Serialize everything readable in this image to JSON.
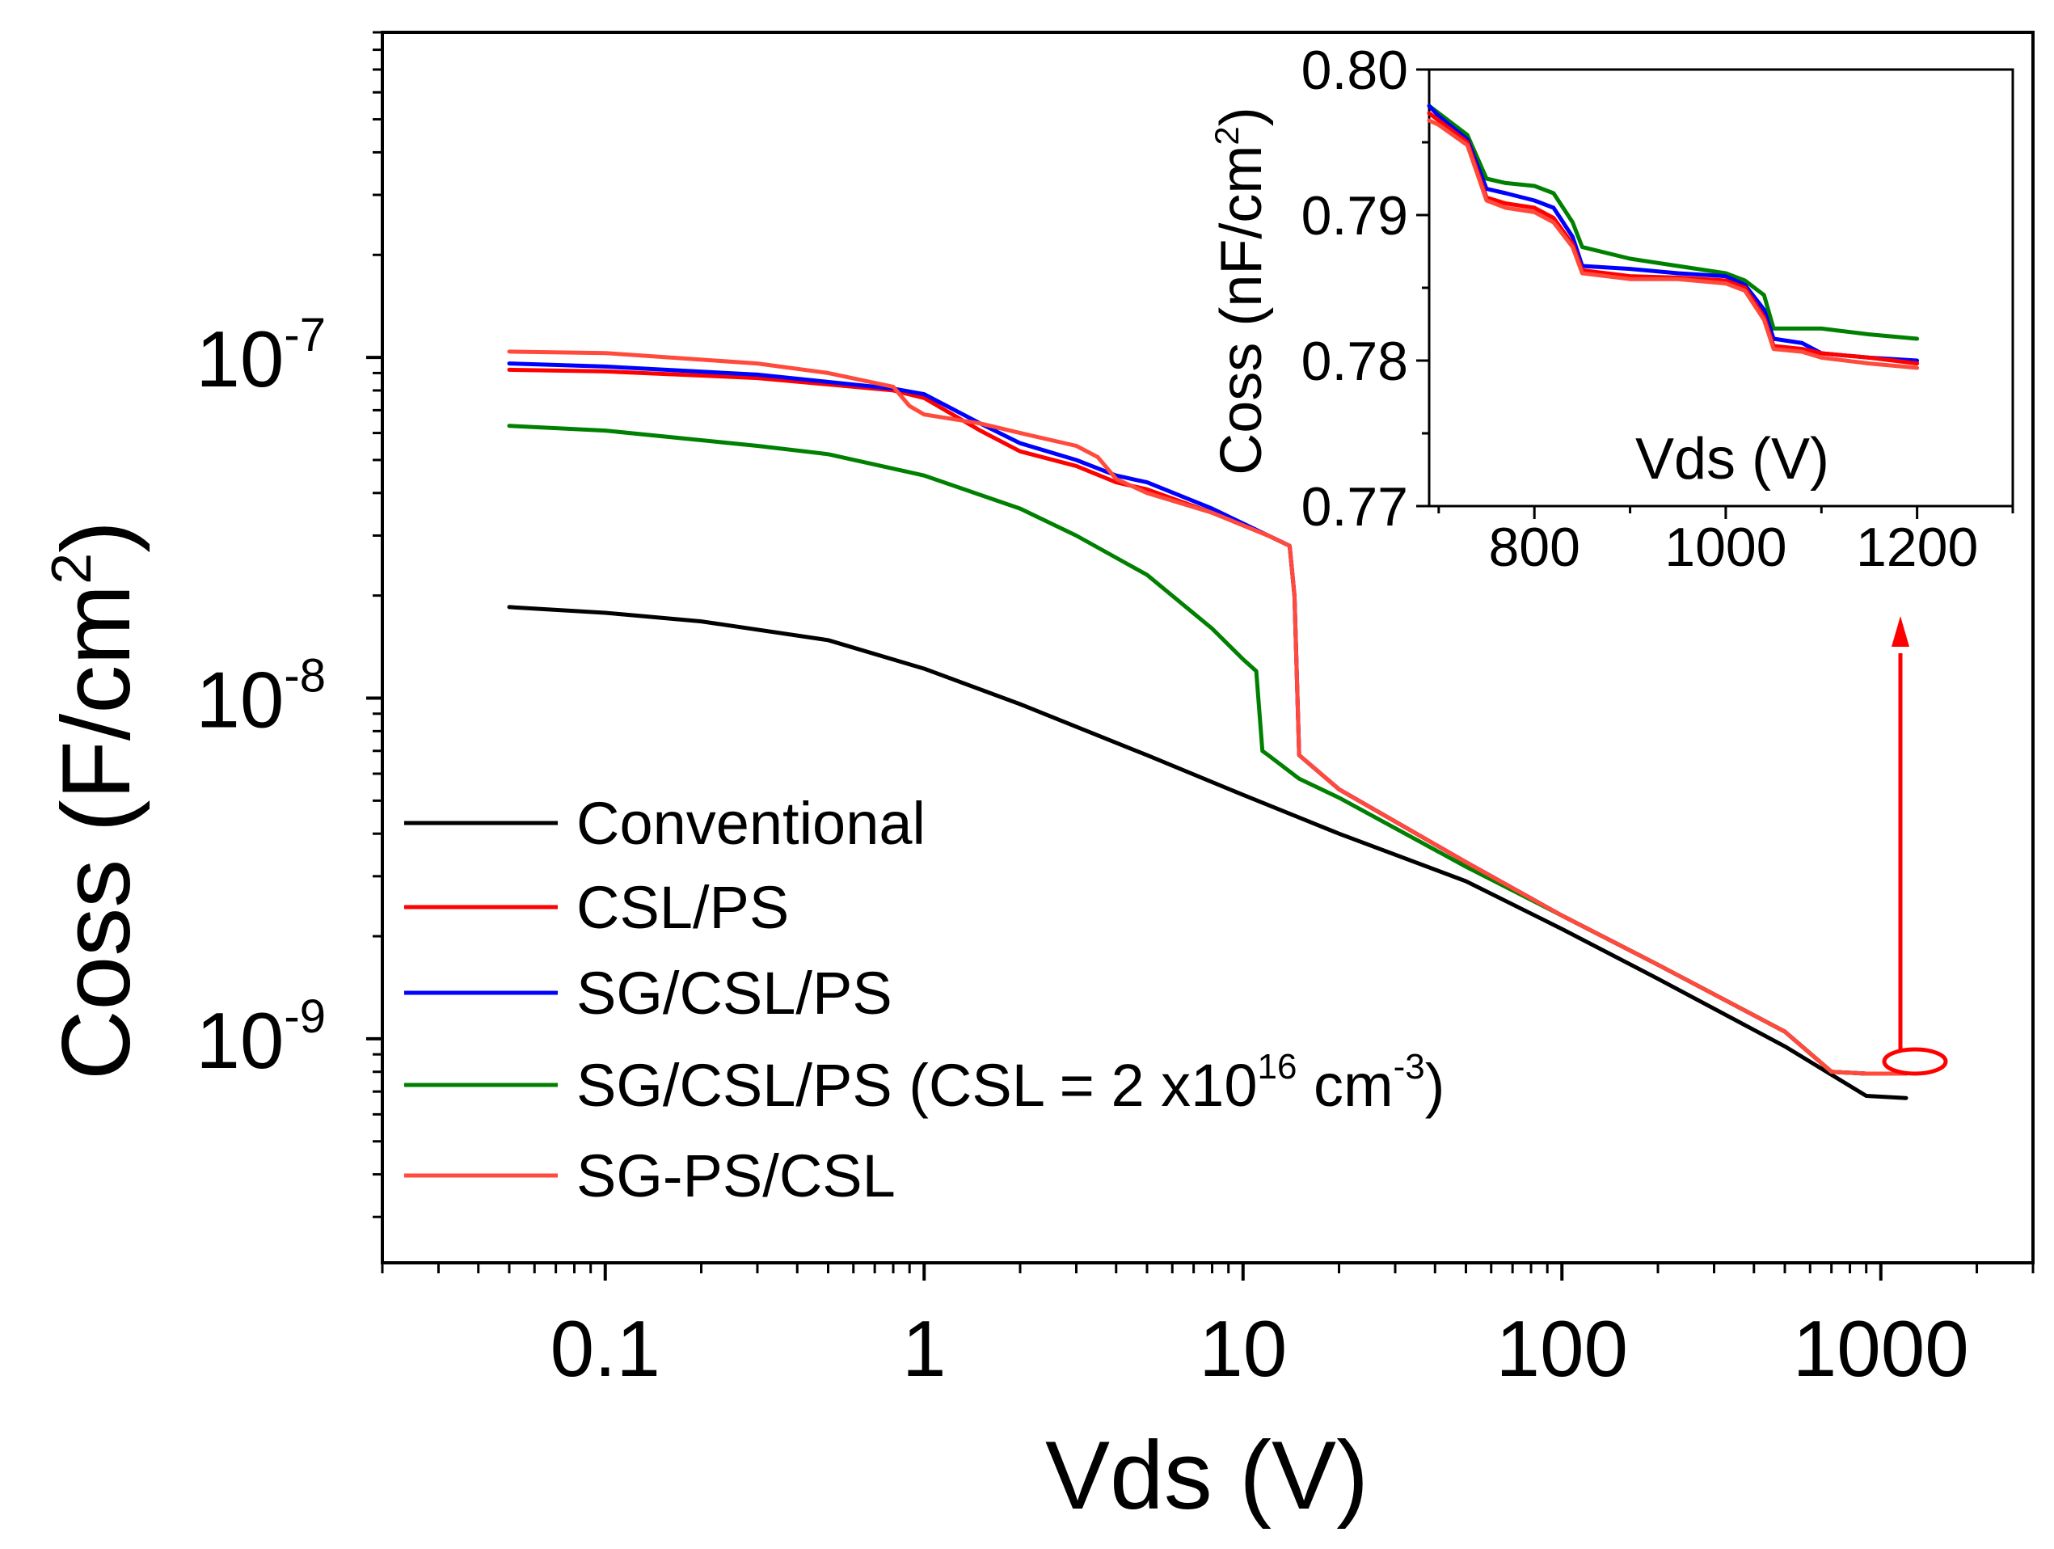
{
  "chart_data": [
    {
      "type": "line",
      "scale": "log-log",
      "xlabel": "Vds (V)",
      "ylabel_main": "Coss (F/cm",
      "ylabel_sup": "2",
      "ylabel_close": ")",
      "xlim": [
        0.02,
        3000
      ],
      "ylim": [
        2.2e-10,
        9e-07
      ],
      "x_ticks": [
        {
          "value": 0.1,
          "label": "0.1"
        },
        {
          "value": 1,
          "label": "1"
        },
        {
          "value": 10,
          "label": "10"
        },
        {
          "value": 100,
          "label": "100"
        },
        {
          "value": 1000,
          "label": "1000"
        }
      ],
      "y_ticks": [
        {
          "value": 1e-07,
          "base": "10",
          "exp": "-7"
        },
        {
          "value": 1e-08,
          "base": "10",
          "exp": "-8"
        },
        {
          "value": 1e-09,
          "base": "10",
          "exp": "-9"
        }
      ],
      "legend_position": "bottom-left",
      "series": [
        {
          "name": "Conventional",
          "color": "#000000",
          "points": [
            [
              0.05,
              1.85e-08
            ],
            [
              0.1,
              1.78e-08
            ],
            [
              0.2,
              1.68e-08
            ],
            [
              0.5,
              1.48e-08
            ],
            [
              1,
              1.22e-08
            ],
            [
              2,
              9.6e-09
            ],
            [
              5,
              6.8e-09
            ],
            [
              10,
              5.2e-09
            ],
            [
              20,
              4e-09
            ],
            [
              50,
              2.9e-09
            ],
            [
              100,
              2.1e-09
            ],
            [
              200,
              1.5e-09
            ],
            [
              500,
              9.5e-10
            ],
            [
              900,
              6.8e-10
            ],
            [
              1200,
              6.7e-10
            ]
          ]
        },
        {
          "name": "CSL/PS",
          "color": "#ff0000",
          "points": [
            [
              0.05,
              9.2e-08
            ],
            [
              0.1,
              9.1e-08
            ],
            [
              0.3,
              8.7e-08
            ],
            [
              0.8,
              8e-08
            ],
            [
              1,
              7.6e-08
            ],
            [
              1.5,
              6.1e-08
            ],
            [
              2,
              5.3e-08
            ],
            [
              3,
              4.8e-08
            ],
            [
              4,
              4.3e-08
            ],
            [
              5,
              4.1e-08
            ],
            [
              8,
              3.5e-08
            ],
            [
              12,
              3e-08
            ],
            [
              14,
              2.8e-08
            ],
            [
              14.5,
              2e-08
            ],
            [
              15,
              6.8e-09
            ],
            [
              20,
              5.4e-09
            ],
            [
              50,
              3.3e-09
            ],
            [
              100,
              2.3e-09
            ],
            [
              200,
              1.65e-09
            ],
            [
              500,
              1.05e-09
            ],
            [
              700,
              8e-10
            ],
            [
              900,
              7.9e-10
            ],
            [
              1200,
              7.9e-10
            ]
          ]
        },
        {
          "name": "SG/CSL/PS",
          "color": "#0000ff",
          "points": [
            [
              0.05,
              9.6e-08
            ],
            [
              0.1,
              9.4e-08
            ],
            [
              0.3,
              8.9e-08
            ],
            [
              0.8,
              8.1e-08
            ],
            [
              1,
              7.8e-08
            ],
            [
              1.5,
              6.4e-08
            ],
            [
              2,
              5.6e-08
            ],
            [
              3,
              5e-08
            ],
            [
              4,
              4.5e-08
            ],
            [
              5,
              4.3e-08
            ],
            [
              8,
              3.6e-08
            ],
            [
              12,
              3e-08
            ],
            [
              14,
              2.8e-08
            ],
            [
              14.5,
              2e-08
            ],
            [
              15,
              6.8e-09
            ],
            [
              20,
              5.4e-09
            ],
            [
              50,
              3.3e-09
            ],
            [
              100,
              2.3e-09
            ],
            [
              200,
              1.65e-09
            ],
            [
              500,
              1.05e-09
            ],
            [
              700,
              8e-10
            ],
            [
              900,
              7.9e-10
            ],
            [
              1200,
              7.9e-10
            ]
          ]
        },
        {
          "name": "SG/CSL/PS (CSL = 2 x10",
          "name_sup1": "16",
          "name_mid": " cm",
          "name_sup2": "-3",
          "name_end": ")",
          "color": "#008000",
          "points": [
            [
              0.05,
              6.3e-08
            ],
            [
              0.1,
              6.1e-08
            ],
            [
              0.3,
              5.5e-08
            ],
            [
              0.5,
              5.2e-08
            ],
            [
              1,
              4.5e-08
            ],
            [
              2,
              3.6e-08
            ],
            [
              3,
              3e-08
            ],
            [
              5,
              2.3e-08
            ],
            [
              8,
              1.6e-08
            ],
            [
              10,
              1.3e-08
            ],
            [
              11,
              1.2e-08
            ],
            [
              11.5,
              7e-09
            ],
            [
              12,
              6.8e-09
            ],
            [
              15,
              5.8e-09
            ],
            [
              20,
              5.1e-09
            ],
            [
              50,
              3.2e-09
            ],
            [
              100,
              2.3e-09
            ],
            [
              200,
              1.65e-09
            ],
            [
              500,
              1.05e-09
            ],
            [
              700,
              8e-10
            ],
            [
              900,
              7.9e-10
            ],
            [
              1200,
              7.9e-10
            ]
          ]
        },
        {
          "name": "SG-PS/CSL",
          "color": "#ff4a3c",
          "points": [
            [
              0.05,
              1.04e-07
            ],
            [
              0.1,
              1.03e-07
            ],
            [
              0.3,
              9.6e-08
            ],
            [
              0.5,
              9e-08
            ],
            [
              0.8,
              8.2e-08
            ],
            [
              0.9,
              7.2e-08
            ],
            [
              1,
              6.8e-08
            ],
            [
              1.5,
              6.4e-08
            ],
            [
              2,
              6e-08
            ],
            [
              3,
              5.5e-08
            ],
            [
              3.5,
              5.1e-08
            ],
            [
              4,
              4.4e-08
            ],
            [
              5,
              4e-08
            ],
            [
              8,
              3.5e-08
            ],
            [
              12,
              3e-08
            ],
            [
              14,
              2.8e-08
            ],
            [
              14.5,
              2e-08
            ],
            [
              15,
              6.8e-09
            ],
            [
              20,
              5.4e-09
            ],
            [
              50,
              3.3e-09
            ],
            [
              100,
              2.3e-09
            ],
            [
              200,
              1.65e-09
            ],
            [
              500,
              1.05e-09
            ],
            [
              700,
              8e-10
            ],
            [
              900,
              7.9e-10
            ],
            [
              1200,
              7.9e-10
            ]
          ]
        }
      ],
      "annotation": "red ellipse around the curves near Vds ≈ 1100 V with an arrow pointing up to the inset"
    },
    {
      "type": "line",
      "role": "inset",
      "xlabel": "Vds (V)",
      "ylabel_main": "Coss (nF/cm",
      "ylabel_sup": "2",
      "ylabel_close": ")",
      "xlim": [
        690,
        1300
      ],
      "ylim": [
        0.77,
        0.8
      ],
      "x_ticks": [
        {
          "value": 800,
          "label": "800"
        },
        {
          "value": 1000,
          "label": "1000"
        },
        {
          "value": 1200,
          "label": "1200"
        }
      ],
      "y_ticks": [
        {
          "value": 0.8,
          "label": "0.80"
        },
        {
          "value": 0.79,
          "label": "0.79"
        },
        {
          "value": 0.78,
          "label": "0.78"
        },
        {
          "value": 0.77,
          "label": "0.77"
        }
      ],
      "series": [
        {
          "name": "SG/CSL/PS (CSL = 2 x10^16 cm^-3)",
          "color": "#008000",
          "points": [
            [
              690,
              0.7975
            ],
            [
              700,
              0.797
            ],
            [
              730,
              0.7955
            ],
            [
              750,
              0.7925
            ],
            [
              770,
              0.7922
            ],
            [
              800,
              0.792
            ],
            [
              820,
              0.7915
            ],
            [
              840,
              0.7895
            ],
            [
              850,
              0.7878
            ],
            [
              900,
              0.787
            ],
            [
              950,
              0.7865
            ],
            [
              1000,
              0.786
            ],
            [
              1020,
              0.7855
            ],
            [
              1040,
              0.7845
            ],
            [
              1050,
              0.7822
            ],
            [
              1060,
              0.7822
            ],
            [
              1100,
              0.7822
            ],
            [
              1150,
              0.7818
            ],
            [
              1200,
              0.7815
            ]
          ]
        },
        {
          "name": "SG/CSL/PS",
          "color": "#0000ff",
          "points": [
            [
              690,
              0.7975
            ],
            [
              700,
              0.7968
            ],
            [
              730,
              0.7952
            ],
            [
              750,
              0.7918
            ],
            [
              770,
              0.7915
            ],
            [
              800,
              0.791
            ],
            [
              820,
              0.7905
            ],
            [
              840,
              0.7885
            ],
            [
              850,
              0.7865
            ],
            [
              900,
              0.7863
            ],
            [
              950,
              0.786
            ],
            [
              1000,
              0.7858
            ],
            [
              1020,
              0.7852
            ],
            [
              1040,
              0.7835
            ],
            [
              1050,
              0.7815
            ],
            [
              1080,
              0.7812
            ],
            [
              1100,
              0.7805
            ],
            [
              1150,
              0.7802
            ],
            [
              1200,
              0.78
            ]
          ]
        },
        {
          "name": "CSL/PS",
          "color": "#ff0000",
          "points": [
            [
              690,
              0.797
            ],
            [
              700,
              0.7965
            ],
            [
              730,
              0.795
            ],
            [
              750,
              0.7912
            ],
            [
              770,
              0.7908
            ],
            [
              800,
              0.7905
            ],
            [
              820,
              0.7898
            ],
            [
              840,
              0.788
            ],
            [
              850,
              0.7862
            ],
            [
              900,
              0.7858
            ],
            [
              950,
              0.7857
            ],
            [
              1000,
              0.7855
            ],
            [
              1020,
              0.785
            ],
            [
              1040,
              0.783
            ],
            [
              1050,
              0.781
            ],
            [
              1080,
              0.7808
            ],
            [
              1100,
              0.7805
            ],
            [
              1150,
              0.7802
            ],
            [
              1200,
              0.7798
            ]
          ]
        },
        {
          "name": "SG-PS/CSL",
          "color": "#ff4a3c",
          "points": [
            [
              690,
              0.7965
            ],
            [
              700,
              0.7962
            ],
            [
              730,
              0.7948
            ],
            [
              750,
              0.791
            ],
            [
              770,
              0.7905
            ],
            [
              800,
              0.7902
            ],
            [
              820,
              0.7895
            ],
            [
              840,
              0.7878
            ],
            [
              850,
              0.786
            ],
            [
              900,
              0.7856
            ],
            [
              950,
              0.7856
            ],
            [
              1000,
              0.7853
            ],
            [
              1020,
              0.7848
            ],
            [
              1040,
              0.7828
            ],
            [
              1050,
              0.7808
            ],
            [
              1080,
              0.7806
            ],
            [
              1100,
              0.7802
            ],
            [
              1150,
              0.7798
            ],
            [
              1200,
              0.7795
            ]
          ]
        }
      ]
    }
  ]
}
